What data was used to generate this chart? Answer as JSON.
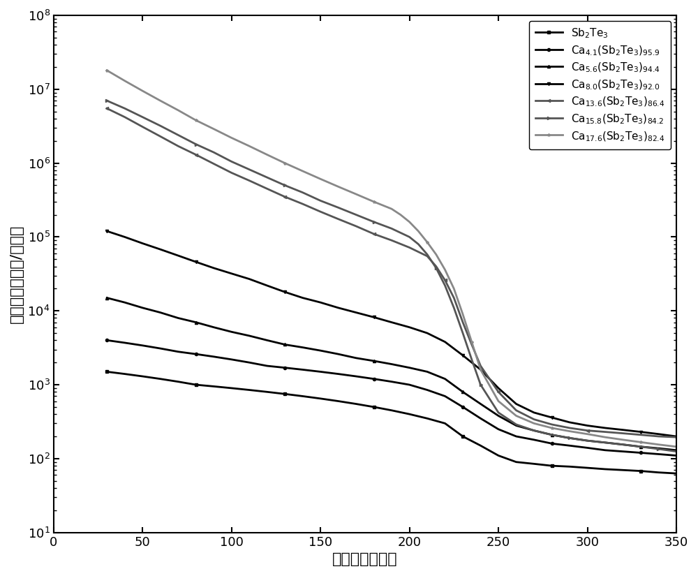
{
  "xlabel": "温度（摄氏度）",
  "ylabel": "方块电阻（欧姆/方块）",
  "xlim": [
    0,
    350
  ],
  "ylim_log": [
    1,
    8
  ],
  "xticks": [
    0,
    50,
    100,
    150,
    200,
    250,
    300,
    350
  ],
  "background_color": "#ffffff",
  "series": [
    {
      "label": "Sb$_2$Te$_3$",
      "marker": "s",
      "color": "#000000",
      "x": [
        30,
        40,
        50,
        60,
        70,
        80,
        90,
        100,
        110,
        120,
        130,
        140,
        150,
        160,
        170,
        180,
        190,
        200,
        210,
        220,
        230,
        240,
        250,
        260,
        270,
        280,
        290,
        300,
        310,
        320,
        330,
        340,
        350
      ],
      "y": [
        1500,
        1400,
        1300,
        1200,
        1100,
        1000,
        950,
        900,
        850,
        800,
        750,
        700,
        650,
        600,
        550,
        500,
        450,
        400,
        350,
        300,
        200,
        150,
        110,
        90,
        85,
        80,
        78,
        75,
        72,
        70,
        68,
        65,
        63
      ],
      "lw": 2.0,
      "ms": 5
    },
    {
      "label": "Ca$_{4.1}$(Sb$_2$Te$_3$)$_{95.9}$",
      "marker": "o",
      "color": "#000000",
      "x": [
        30,
        40,
        50,
        60,
        70,
        80,
        90,
        100,
        110,
        120,
        130,
        140,
        150,
        160,
        170,
        180,
        190,
        200,
        210,
        220,
        230,
        240,
        250,
        260,
        270,
        280,
        290,
        300,
        310,
        320,
        330,
        340,
        350
      ],
      "y": [
        4000,
        3700,
        3400,
        3100,
        2800,
        2600,
        2400,
        2200,
        2000,
        1800,
        1700,
        1600,
        1500,
        1400,
        1300,
        1200,
        1100,
        1000,
        850,
        700,
        500,
        350,
        250,
        200,
        180,
        160,
        150,
        140,
        130,
        125,
        120,
        115,
        110
      ],
      "lw": 2.0,
      "ms": 5
    },
    {
      "label": "Ca$_{5.6}$(Sb$_2$Te$_3$)$_{94.4}$",
      "marker": "^",
      "color": "#000000",
      "x": [
        30,
        40,
        50,
        60,
        70,
        80,
        90,
        100,
        110,
        120,
        130,
        140,
        150,
        160,
        170,
        180,
        190,
        200,
        210,
        220,
        230,
        240,
        250,
        260,
        270,
        280,
        290,
        300,
        310,
        320,
        330,
        340,
        350
      ],
      "y": [
        15000,
        13000,
        11000,
        9500,
        8000,
        7000,
        6000,
        5200,
        4600,
        4000,
        3500,
        3200,
        2900,
        2600,
        2300,
        2100,
        1900,
        1700,
        1500,
        1200,
        800,
        550,
        380,
        280,
        240,
        210,
        190,
        175,
        165,
        155,
        145,
        138,
        130
      ],
      "lw": 2.0,
      "ms": 5
    },
    {
      "label": "Ca$_{8.0}$(Sb$_2$Te$_3$)$_{92.0}$",
      "marker": "v",
      "color": "#000000",
      "x": [
        30,
        40,
        50,
        60,
        70,
        80,
        90,
        100,
        110,
        120,
        130,
        140,
        150,
        160,
        170,
        180,
        190,
        200,
        210,
        220,
        230,
        240,
        250,
        260,
        270,
        280,
        290,
        300,
        310,
        320,
        330,
        340,
        350
      ],
      "y": [
        120000,
        100000,
        82000,
        68000,
        56000,
        46000,
        38000,
        32000,
        27000,
        22000,
        18000,
        15000,
        13000,
        11000,
        9500,
        8200,
        7000,
        6000,
        5000,
        3800,
        2500,
        1600,
        900,
        550,
        420,
        360,
        310,
        280,
        260,
        245,
        230,
        215,
        200
      ],
      "lw": 2.0,
      "ms": 5
    },
    {
      "label": "Ca$_{13.6}$(Sb$_2$Te$_3$)$_{86.4}$",
      "marker": "<",
      "color": "#555555",
      "x": [
        30,
        40,
        50,
        60,
        70,
        80,
        90,
        100,
        110,
        120,
        130,
        140,
        150,
        160,
        170,
        180,
        190,
        200,
        210,
        215,
        220,
        225,
        230,
        235,
        240,
        250,
        260,
        270,
        280,
        290,
        300,
        310,
        320,
        330,
        340,
        350
      ],
      "y": [
        5500000,
        4200000,
        3100000,
        2300000,
        1700000,
        1300000,
        980000,
        740000,
        580000,
        450000,
        350000,
        280000,
        220000,
        175000,
        140000,
        110000,
        90000,
        72000,
        55000,
        40000,
        26000,
        15000,
        7000,
        3500,
        1800,
        800,
        450,
        340,
        290,
        260,
        240,
        230,
        220,
        210,
        200,
        195
      ],
      "lw": 2.0,
      "ms": 5
    },
    {
      "label": "Ca$_{15.8}$(Sb$_2$Te$_3$)$_{84.2}$",
      "marker": ">",
      "color": "#555555",
      "x": [
        30,
        40,
        50,
        60,
        70,
        80,
        90,
        100,
        110,
        120,
        130,
        140,
        150,
        160,
        170,
        180,
        190,
        200,
        205,
        210,
        215,
        220,
        225,
        230,
        235,
        240,
        250,
        260,
        270,
        280,
        290,
        300,
        310,
        320,
        330,
        340,
        350
      ],
      "y": [
        7000000,
        5500000,
        4200000,
        3200000,
        2400000,
        1800000,
        1400000,
        1050000,
        820000,
        640000,
        500000,
        400000,
        310000,
        250000,
        200000,
        160000,
        130000,
        100000,
        80000,
        58000,
        38000,
        22000,
        11000,
        5000,
        2200,
        1000,
        420,
        290,
        240,
        210,
        190,
        175,
        165,
        155,
        145,
        135,
        125
      ],
      "lw": 2.0,
      "ms": 5
    },
    {
      "label": "Ca$_{17.6}$(Sb$_2$Te$_3$)$_{82.4}$",
      "marker": "*",
      "color": "#888888",
      "x": [
        30,
        40,
        50,
        60,
        70,
        80,
        90,
        100,
        110,
        120,
        130,
        140,
        150,
        160,
        170,
        180,
        190,
        195,
        200,
        205,
        210,
        215,
        220,
        225,
        230,
        235,
        240,
        250,
        260,
        270,
        280,
        290,
        300,
        310,
        320,
        330,
        340,
        350
      ],
      "y": [
        18000000,
        13000000,
        9500000,
        7000000,
        5200000,
        3800000,
        2900000,
        2200000,
        1700000,
        1300000,
        1000000,
        780000,
        610000,
        480000,
        380000,
        300000,
        240000,
        200000,
        160000,
        120000,
        85000,
        58000,
        36000,
        20000,
        9000,
        3800,
        1600,
        600,
        380,
        300,
        260,
        235,
        215,
        195,
        180,
        167,
        155,
        145
      ],
      "lw": 2.0,
      "ms": 6
    }
  ],
  "markersize_dense": 3,
  "markevery": 5,
  "fontsize_label": 16,
  "fontsize_tick": 13,
  "fontsize_legend": 11
}
